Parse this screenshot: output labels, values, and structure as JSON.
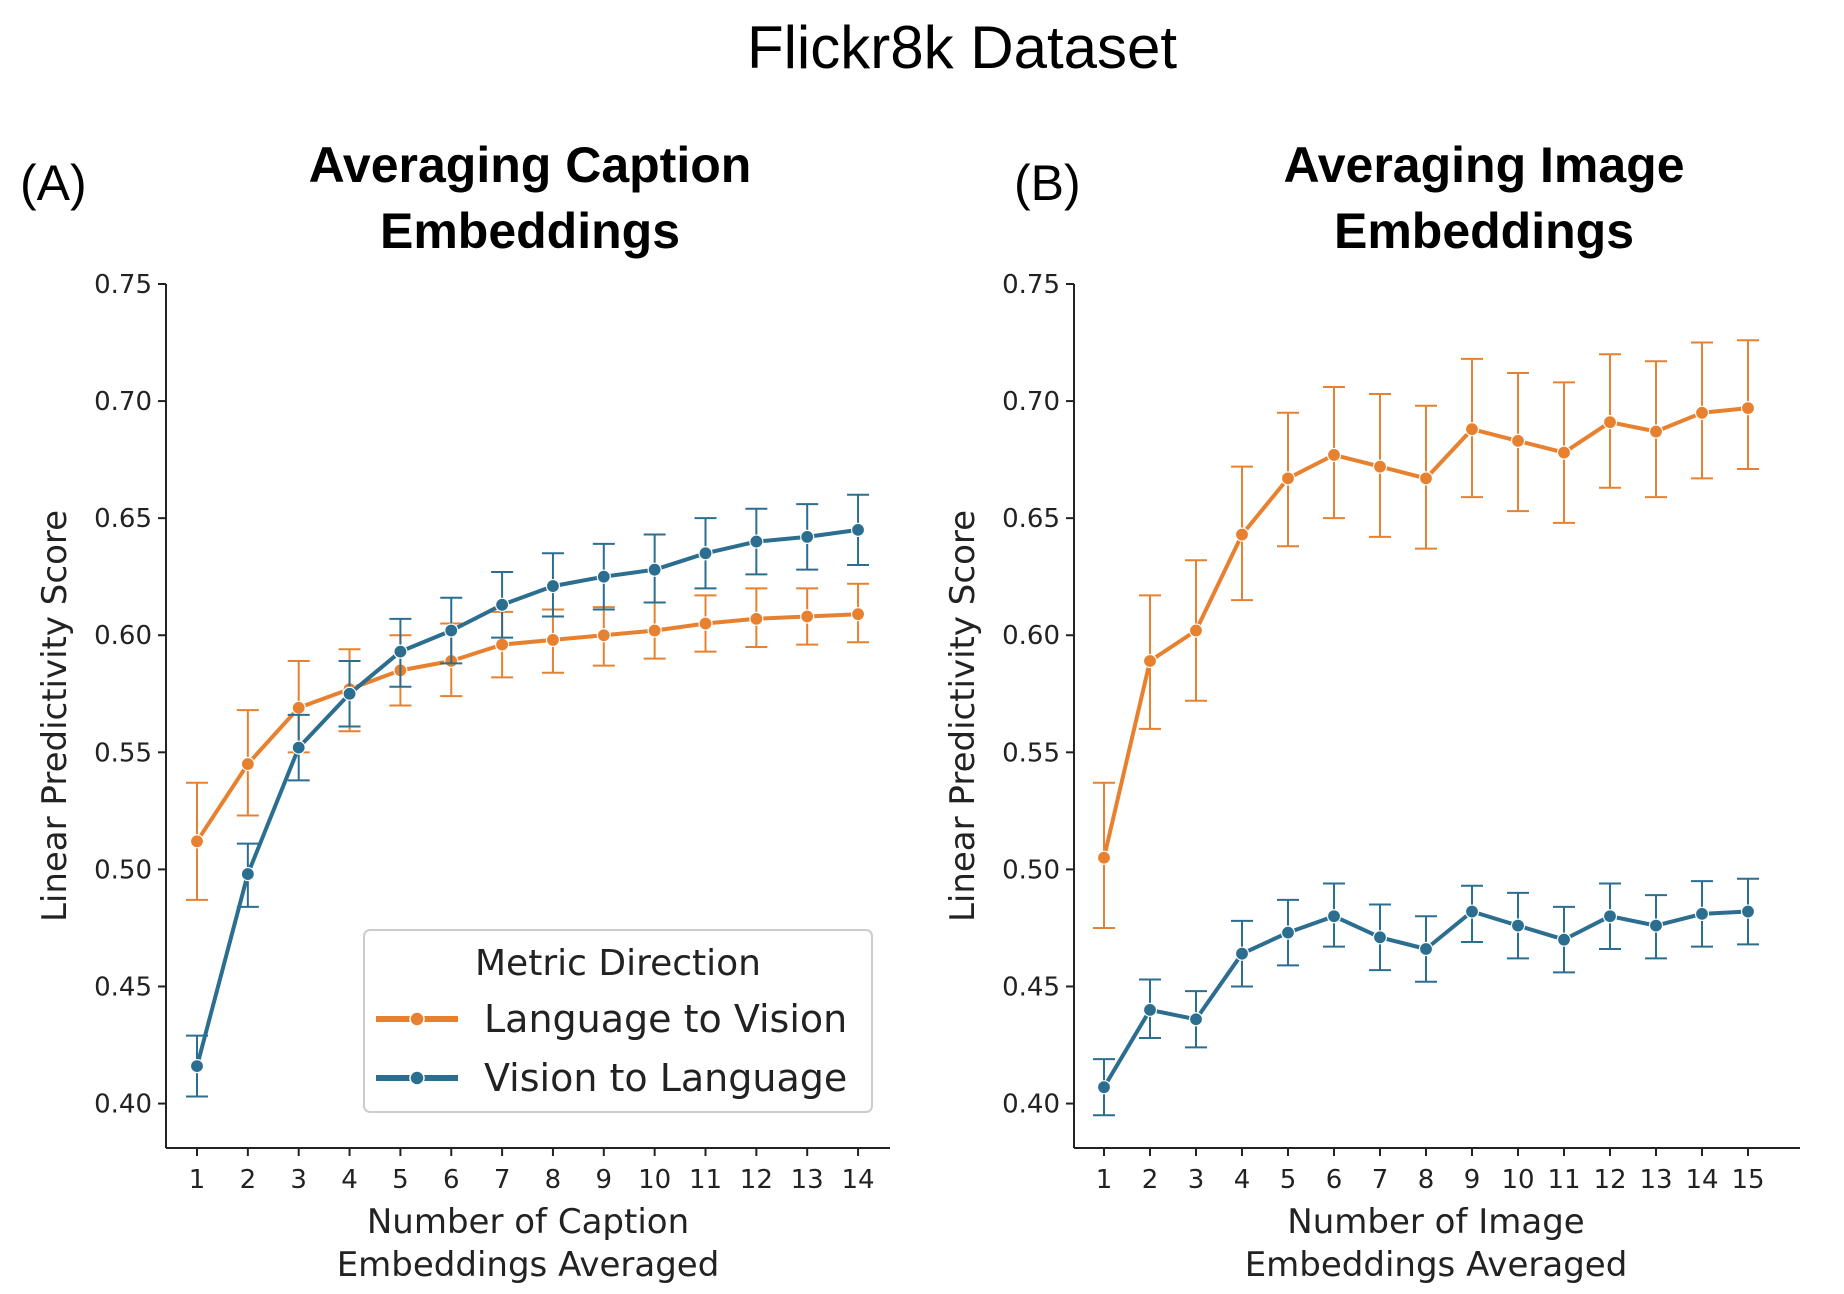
{
  "suptitle": "Flickr8k Dataset",
  "colors": {
    "language_to_vision": "#E8812F",
    "vision_to_language": "#2B6E8F"
  },
  "legend": {
    "title": "Metric Direction",
    "entries": [
      "Language to Vision",
      "Vision to Language"
    ],
    "location": "lower-right of panel A"
  },
  "chart_data": [
    {
      "type": "line",
      "panel": "(A)",
      "title": "Averaging Caption Embeddings",
      "title_lines": [
        "Averaging Caption",
        "Embeddings"
      ],
      "xlabel_lines": [
        "Number of Caption",
        "Embeddings Averaged"
      ],
      "ylabel": "Linear Predictivity Score",
      "ylim": [
        0.38,
        0.75
      ],
      "yticks": [
        0.4,
        0.45,
        0.5,
        0.55,
        0.6,
        0.65,
        0.7,
        0.75
      ],
      "x": [
        1,
        2,
        3,
        4,
        5,
        6,
        7,
        8,
        9,
        10,
        11,
        12,
        13,
        14
      ],
      "series": [
        {
          "name": "Language to Vision",
          "values": [
            0.512,
            0.545,
            0.569,
            0.577,
            0.585,
            0.589,
            0.596,
            0.598,
            0.6,
            0.602,
            0.605,
            0.607,
            0.608,
            0.609
          ],
          "err_low": [
            0.487,
            0.523,
            0.55,
            0.559,
            0.57,
            0.574,
            0.582,
            0.584,
            0.587,
            0.59,
            0.593,
            0.595,
            0.596,
            0.597
          ],
          "err_high": [
            0.537,
            0.568,
            0.589,
            0.594,
            0.6,
            0.605,
            0.61,
            0.611,
            0.612,
            0.614,
            0.617,
            0.62,
            0.62,
            0.622
          ]
        },
        {
          "name": "Vision to Language",
          "values": [
            0.416,
            0.498,
            0.552,
            0.575,
            0.593,
            0.602,
            0.613,
            0.621,
            0.625,
            0.628,
            0.635,
            0.64,
            0.642,
            0.645
          ],
          "err_low": [
            0.403,
            0.484,
            0.538,
            0.561,
            0.578,
            0.588,
            0.599,
            0.608,
            0.611,
            0.614,
            0.62,
            0.626,
            0.628,
            0.63
          ],
          "err_high": [
            0.429,
            0.511,
            0.566,
            0.589,
            0.607,
            0.616,
            0.627,
            0.635,
            0.639,
            0.643,
            0.65,
            0.654,
            0.656,
            0.66
          ]
        }
      ]
    },
    {
      "type": "line",
      "panel": "(B)",
      "title": "Averaging Image Embeddings",
      "title_lines": [
        "Averaging Image",
        "Embeddings"
      ],
      "xlabel_lines": [
        "Number of Image",
        "Embeddings Averaged"
      ],
      "ylabel": "Linear Predictivity Score",
      "ylim": [
        0.38,
        0.75
      ],
      "yticks": [
        0.4,
        0.45,
        0.5,
        0.55,
        0.6,
        0.65,
        0.7,
        0.75
      ],
      "x": [
        1,
        2,
        3,
        4,
        5,
        6,
        7,
        8,
        9,
        10,
        11,
        12,
        13,
        14,
        15
      ],
      "series": [
        {
          "name": "Language to Vision",
          "values": [
            0.505,
            0.589,
            0.602,
            0.643,
            0.667,
            0.677,
            0.672,
            0.667,
            0.688,
            0.683,
            0.678,
            0.691,
            0.687,
            0.695,
            0.697
          ],
          "err_low": [
            0.475,
            0.56,
            0.572,
            0.615,
            0.638,
            0.65,
            0.642,
            0.637,
            0.659,
            0.653,
            0.648,
            0.663,
            0.659,
            0.667,
            0.671
          ],
          "err_high": [
            0.537,
            0.617,
            0.632,
            0.672,
            0.695,
            0.706,
            0.703,
            0.698,
            0.718,
            0.712,
            0.708,
            0.72,
            0.717,
            0.725,
            0.726
          ]
        },
        {
          "name": "Vision to Language",
          "values": [
            0.407,
            0.44,
            0.436,
            0.464,
            0.473,
            0.48,
            0.471,
            0.466,
            0.482,
            0.476,
            0.47,
            0.48,
            0.476,
            0.481,
            0.482
          ],
          "err_low": [
            0.395,
            0.428,
            0.424,
            0.45,
            0.459,
            0.467,
            0.457,
            0.452,
            0.469,
            0.462,
            0.456,
            0.466,
            0.462,
            0.467,
            0.468
          ],
          "err_high": [
            0.419,
            0.453,
            0.448,
            0.478,
            0.487,
            0.494,
            0.485,
            0.48,
            0.493,
            0.49,
            0.484,
            0.494,
            0.489,
            0.495,
            0.496
          ]
        }
      ]
    }
  ]
}
